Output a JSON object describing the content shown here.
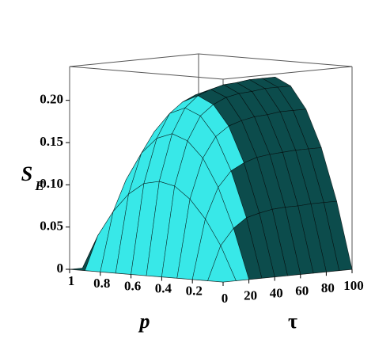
{
  "chart_data": {
    "type": "surface",
    "zlabel_main": "S",
    "zlabel_sub": "E",
    "xlabel": "p",
    "ylabel": "τ",
    "x": [
      0,
      0.1,
      0.2,
      0.3,
      0.4,
      0.5,
      0.6,
      0.7,
      0.8,
      0.9,
      1
    ],
    "y": [
      0,
      10,
      20,
      30,
      40,
      50,
      60,
      70,
      80,
      90,
      100
    ],
    "z": [
      [
        0,
        0,
        0,
        0,
        0,
        0,
        0,
        0,
        0,
        0,
        0
      ],
      [
        0,
        0.04,
        0.07,
        0.092,
        0.106,
        0.11,
        0.106,
        0.092,
        0.07,
        0.04,
        0
      ],
      [
        0,
        0.059,
        0.106,
        0.139,
        0.158,
        0.165,
        0.158,
        0.139,
        0.106,
        0.059,
        0
      ],
      [
        0,
        0.07,
        0.124,
        0.163,
        0.186,
        0.194,
        0.186,
        0.163,
        0.124,
        0.07,
        0
      ],
      [
        0,
        0.074,
        0.132,
        0.174,
        0.198,
        0.207,
        0.198,
        0.174,
        0.132,
        0.074,
        0
      ],
      [
        0,
        0.077,
        0.137,
        0.179,
        0.205,
        0.213,
        0.205,
        0.179,
        0.137,
        0.077,
        0
      ],
      [
        0,
        0.078,
        0.139,
        0.182,
        0.208,
        0.217,
        0.208,
        0.182,
        0.139,
        0.078,
        0
      ],
      [
        0,
        0.078,
        0.14,
        0.183,
        0.209,
        0.218,
        0.209,
        0.183,
        0.14,
        0.078,
        0
      ],
      [
        0,
        0.079,
        0.141,
        0.185,
        0.211,
        0.22,
        0.211,
        0.185,
        0.141,
        0.079,
        0
      ],
      [
        0,
        0.079,
        0.141,
        0.185,
        0.211,
        0.22,
        0.211,
        0.185,
        0.141,
        0.079,
        0
      ],
      [
        0,
        0.079,
        0.141,
        0.185,
        0.211,
        0.22,
        0.211,
        0.185,
        0.141,
        0.079,
        0
      ]
    ],
    "xlim": [
      0,
      1
    ],
    "ylim": [
      0,
      100
    ],
    "zlim": [
      0,
      0.24
    ],
    "xticks": [
      1,
      0.8,
      0.6,
      0.4,
      0.2
    ],
    "yticks": [
      0,
      20,
      40,
      60,
      80,
      100
    ],
    "zticks": [
      0,
      0.05,
      {
        "value": 0.1,
        "label": "0.10"
      },
      0.15,
      {
        "value": 0.2,
        "label": "0.20"
      }
    ],
    "front_color": "#38e8e8",
    "side_color": "#0c4c4c",
    "box": true
  }
}
